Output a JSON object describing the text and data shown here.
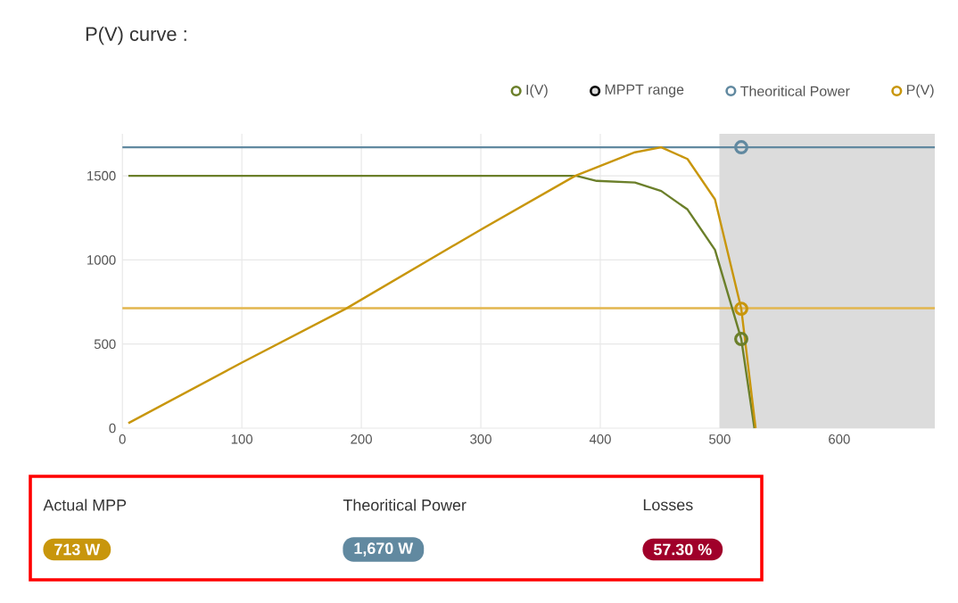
{
  "chart_data": {
    "type": "line",
    "title": "P(V) curve :",
    "legend": "top right",
    "grid": true,
    "xlim": [
      0,
      680
    ],
    "ylim": [
      0,
      1750
    ],
    "xticks": [
      0,
      100,
      200,
      300,
      400,
      500,
      600
    ],
    "yticks": [
      0,
      500,
      1000,
      1500
    ],
    "series": [
      {
        "name": "I(V)",
        "color": "#6b7f2a",
        "x": [
          5,
          100,
          200,
          300,
          380,
          397,
          429,
          451,
          473,
          496,
          518,
          529
        ],
        "values": [
          1500,
          1500,
          1500,
          1500,
          1500,
          1470,
          1460,
          1410,
          1300,
          1060,
          530,
          0
        ]
      },
      {
        "name": "Theoritical Power",
        "color": "#6189a0",
        "x": [
          0,
          680
        ],
        "values": [
          1670,
          1670
        ]
      },
      {
        "name": "P(V)",
        "color": "#c8960c",
        "x": [
          5,
          100,
          187,
          300,
          379,
          429,
          451,
          473,
          496,
          518,
          530
        ],
        "values": [
          30,
          390,
          710,
          1180,
          1500,
          1640,
          1670,
          1600,
          1360,
          710,
          0
        ]
      },
      {
        "type": "scatter",
        "x": [
          518,
          518,
          518
        ],
        "values": [
          1670,
          710,
          530
        ],
        "colors": [
          "#6189a0",
          "#c8960c",
          "#6b7f2a"
        ]
      }
    ],
    "bands": [
      {
        "axis": "x",
        "from": 500,
        "to": 680,
        "label": "MPPT range",
        "color": "#dcdcdc"
      }
    ],
    "ref_lines": [
      {
        "axis": "y",
        "value": 713,
        "color": "#e2b64e"
      }
    ],
    "annotations": [
      "Actual MPP",
      "713 W",
      "Theoritical Power",
      "1,670 W",
      "Losses",
      "57.30 %"
    ]
  }
}
